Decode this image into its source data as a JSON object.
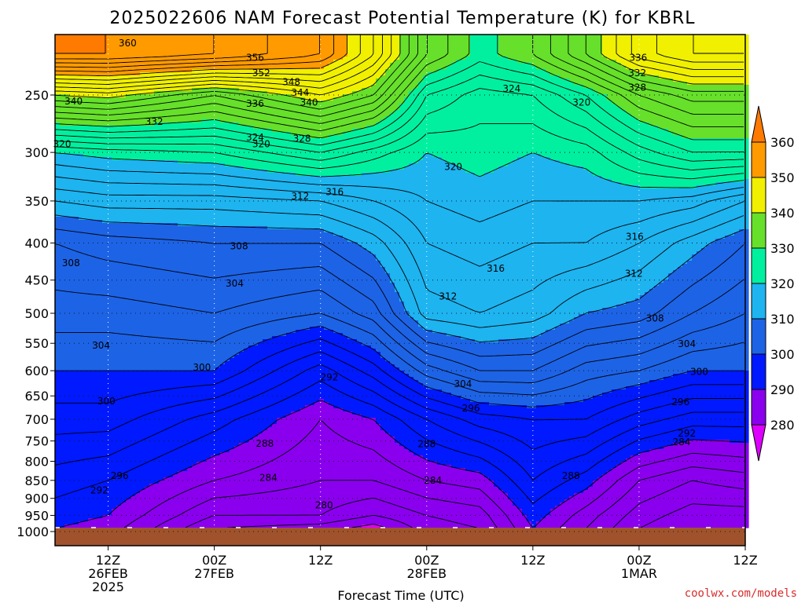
{
  "title": "2025022606 NAM Forecast Potential Temperature (K) for KBRL",
  "credit": "coolwx.com/models",
  "chart_data": {
    "type": "heatmap",
    "title": "2025022606 NAM Forecast Potential Temperature (K) for KBRL",
    "xlabel": "Forecast Time (UTC)",
    "ylabel": "",
    "ylim": [
      1000,
      200
    ],
    "yticks": [
      250,
      300,
      350,
      400,
      450,
      500,
      550,
      600,
      650,
      700,
      750,
      800,
      850,
      900,
      950,
      1000
    ],
    "xlim": [
      6,
      84
    ],
    "xticks": [
      {
        "hour": 12,
        "lines": [
          "12Z",
          "26FEB",
          "2025"
        ]
      },
      {
        "hour": 24,
        "lines": [
          "00Z",
          "27FEB"
        ]
      },
      {
        "hour": 36,
        "lines": [
          "12Z"
        ]
      },
      {
        "hour": 48,
        "lines": [
          "00Z",
          "28FEB"
        ]
      },
      {
        "hour": 60,
        "lines": [
          "12Z"
        ]
      },
      {
        "hour": 72,
        "lines": [
          "00Z",
          "1MAR"
        ]
      },
      {
        "hour": 84,
        "lines": [
          "12Z"
        ]
      }
    ],
    "grid": true,
    "colorbar": {
      "levels": [
        280,
        290,
        300,
        310,
        320,
        330,
        340,
        350,
        360
      ],
      "colors": [
        "#dd00ff",
        "#8a00ee",
        "#0019ff",
        "#1d63e6",
        "#1db4f0",
        "#00f0a0",
        "#66e02a",
        "#f0f000",
        "#ff9a00",
        "#ff7a00"
      ]
    },
    "profiles": [
      {
        "hour": 6,
        "pressures": [
          220,
          250,
          300,
          350,
          400,
          500,
          600,
          700,
          850,
          950,
          990
        ],
        "theta": [
          360,
          340,
          320,
          312,
          306,
          303,
          300,
          297,
          293,
          291,
          290
        ]
      },
      {
        "hour": 12,
        "pressures": [
          220,
          250,
          300,
          350,
          400,
          500,
          600,
          700,
          850,
          950,
          990
        ],
        "theta": [
          360,
          341,
          321,
          313,
          307,
          303,
          300,
          297,
          292,
          290,
          289
        ]
      },
      {
        "hour": 24,
        "pressures": [
          220,
          250,
          300,
          350,
          400,
          500,
          600,
          700,
          850,
          950,
          990
        ],
        "theta": [
          358,
          336,
          322,
          313,
          308,
          304,
          300,
          293,
          288,
          284,
          282
        ]
      },
      {
        "hour": 36,
        "pressures": [
          220,
          250,
          300,
          350,
          400,
          500,
          600,
          700,
          850,
          950,
          990
        ],
        "theta": [
          354,
          342,
          326,
          314,
          308,
          302,
          293,
          288,
          286,
          284,
          281
        ]
      },
      {
        "hour": 42,
        "pressures": [
          220,
          250,
          300,
          350,
          400,
          500,
          600,
          700,
          850,
          950,
          990
        ],
        "theta": [
          346,
          338,
          323,
          316,
          311,
          305,
          297,
          290,
          286,
          282,
          279
        ]
      },
      {
        "hour": 48,
        "pressures": [
          220,
          250,
          300,
          350,
          400,
          500,
          600,
          700,
          850,
          950,
          990
        ],
        "theta": [
          334,
          326,
          320,
          318,
          316,
          313,
          303,
          294,
          288,
          284,
          283
        ]
      },
      {
        "hour": 54,
        "pressures": [
          220,
          250,
          300,
          350,
          400,
          500,
          600,
          700,
          850,
          950,
          990
        ],
        "theta": [
          329,
          323,
          321,
          319,
          317,
          314,
          306,
          297,
          289,
          285,
          284
        ]
      },
      {
        "hour": 60,
        "pressures": [
          220,
          250,
          300,
          350,
          400,
          500,
          600,
          700,
          850,
          950,
          990
        ],
        "theta": [
          332,
          324,
          320,
          318,
          316,
          313,
          306,
          298,
          294,
          291,
          290
        ]
      },
      {
        "hour": 66,
        "pressures": [
          220,
          250,
          300,
          350,
          400,
          500,
          600,
          700,
          850,
          950,
          990
        ],
        "theta": [
          338,
          328,
          321,
          318,
          316,
          310,
          303,
          298,
          291,
          287,
          286
        ]
      },
      {
        "hour": 72,
        "pressures": [
          220,
          250,
          300,
          350,
          400,
          500,
          600,
          700,
          850,
          950,
          990
        ],
        "theta": [
          345,
          334,
          325,
          318,
          314,
          309,
          302,
          295,
          286,
          283,
          282
        ]
      },
      {
        "hour": 78,
        "pressures": [
          220,
          250,
          300,
          350,
          400,
          500,
          600,
          700,
          850,
          950,
          990
        ],
        "theta": [
          348,
          337,
          328,
          317,
          311,
          306,
          300,
          293,
          284,
          281,
          280
        ]
      },
      {
        "hour": 84,
        "pressures": [
          220,
          250,
          300,
          350,
          400,
          500,
          600,
          700,
          850,
          950,
          990
        ],
        "theta": [
          348,
          337,
          328,
          314,
          308,
          304,
          300,
          293,
          285,
          281,
          280
        ]
      }
    ],
    "contour_labels": [
      {
        "text": "360",
        "hour": 14.2,
        "p": 212
      },
      {
        "text": "356",
        "hour": 28.6,
        "p": 222
      },
      {
        "text": "352",
        "hour": 29.3,
        "p": 233
      },
      {
        "text": "348",
        "hour": 32.7,
        "p": 240
      },
      {
        "text": "344",
        "hour": 33.7,
        "p": 248
      },
      {
        "text": "340",
        "hour": 8.1,
        "p": 255
      },
      {
        "text": "340",
        "hour": 34.7,
        "p": 256
      },
      {
        "text": "336",
        "hour": 28.6,
        "p": 257
      },
      {
        "text": "332",
        "hour": 17.2,
        "p": 272
      },
      {
        "text": "328",
        "hour": 33.9,
        "p": 287
      },
      {
        "text": "324",
        "hour": 28.6,
        "p": 286
      },
      {
        "text": "320",
        "hour": 6.8,
        "p": 292
      },
      {
        "text": "320",
        "hour": 29.3,
        "p": 292
      },
      {
        "text": "324",
        "hour": 57.6,
        "p": 245
      },
      {
        "text": "320",
        "hour": 65.5,
        "p": 256
      },
      {
        "text": "336",
        "hour": 71.9,
        "p": 222
      },
      {
        "text": "332",
        "hour": 71.8,
        "p": 233
      },
      {
        "text": "328",
        "hour": 71.8,
        "p": 244
      },
      {
        "text": "320",
        "hour": 51.0,
        "p": 314
      },
      {
        "text": "312",
        "hour": 33.7,
        "p": 345
      },
      {
        "text": "316",
        "hour": 37.6,
        "p": 340
      },
      {
        "text": "316",
        "hour": 71.5,
        "p": 392
      },
      {
        "text": "308",
        "hour": 26.8,
        "p": 404
      },
      {
        "text": "308",
        "hour": 7.8,
        "p": 426
      },
      {
        "text": "316",
        "hour": 55.8,
        "p": 434
      },
      {
        "text": "312",
        "hour": 71.4,
        "p": 441
      },
      {
        "text": "304",
        "hour": 26.3,
        "p": 455
      },
      {
        "text": "312",
        "hour": 50.4,
        "p": 474
      },
      {
        "text": "308",
        "hour": 73.8,
        "p": 508
      },
      {
        "text": "304",
        "hour": 11.2,
        "p": 554
      },
      {
        "text": "304",
        "hour": 77.4,
        "p": 551
      },
      {
        "text": "300",
        "hour": 22.6,
        "p": 594
      },
      {
        "text": "300",
        "hour": 78.8,
        "p": 602
      },
      {
        "text": "292",
        "hour": 37.0,
        "p": 613
      },
      {
        "text": "304",
        "hour": 52.1,
        "p": 626
      },
      {
        "text": "300",
        "hour": 11.8,
        "p": 661
      },
      {
        "text": "296",
        "hour": 53.0,
        "p": 676
      },
      {
        "text": "296",
        "hour": 76.7,
        "p": 663
      },
      {
        "text": "292",
        "hour": 77.4,
        "p": 732
      },
      {
        "text": "284",
        "hour": 76.8,
        "p": 753
      },
      {
        "text": "288",
        "hour": 29.7,
        "p": 756
      },
      {
        "text": "288",
        "hour": 48.0,
        "p": 757
      },
      {
        "text": "296",
        "hour": 13.3,
        "p": 838
      },
      {
        "text": "292",
        "hour": 11.0,
        "p": 877
      },
      {
        "text": "284",
        "hour": 30.1,
        "p": 843
      },
      {
        "text": "284",
        "hour": 48.7,
        "p": 850
      },
      {
        "text": "288",
        "hour": 64.3,
        "p": 838
      },
      {
        "text": "280",
        "hour": 36.4,
        "p": 920
      }
    ]
  }
}
